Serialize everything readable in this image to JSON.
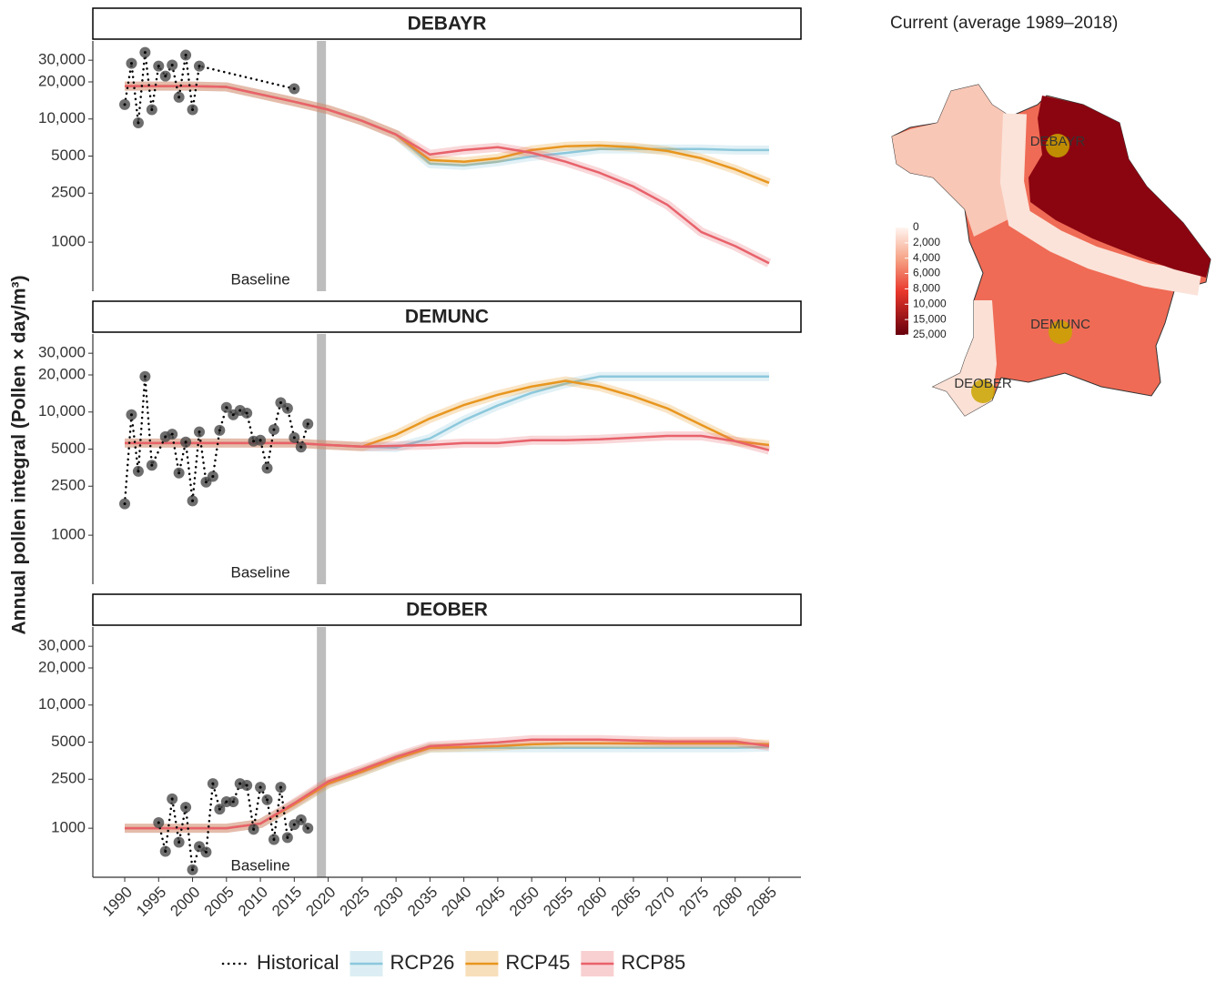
{
  "chart_data": [
    {
      "type": "line",
      "title": "DEBAYR",
      "yscale": "log",
      "xlim": [
        1985.3,
        2089.7
      ],
      "ylim": [
        400,
        43000
      ],
      "yticks": [
        1000,
        2500,
        5000,
        {
          "value": 10000,
          "label": "10,000"
        },
        {
          "value": 20000,
          "label": "20,000"
        },
        {
          "value": 30000,
          "label": "30,000"
        }
      ],
      "annotation": "Baseline",
      "baseline_year": 2019,
      "series": [
        {
          "name": "Historical",
          "color": "#000000",
          "x": [
            1990,
            1991,
            1992,
            1993,
            1994,
            1995,
            1996,
            1997,
            1998,
            1999,
            2000,
            2001,
            2015
          ],
          "values": [
            13100,
            28300,
            9300,
            34700,
            11900,
            26900,
            22300,
            27400,
            15000,
            33000,
            11900,
            26900,
            17600
          ]
        },
        {
          "name": "RCP26",
          "color": "#8cc8dc",
          "x": [
            1990,
            1995,
            2000,
            2005,
            2010,
            2015,
            2020,
            2025,
            2030,
            2035,
            2040,
            2045,
            2050,
            2055,
            2060,
            2065,
            2070,
            2075,
            2080,
            2085
          ],
          "values": [
            18500,
            18500,
            18500,
            18200,
            15850,
            13800,
            11900,
            9660,
            7480,
            4340,
            4200,
            4500,
            4970,
            5300,
            5700,
            5700,
            5700,
            5700,
            5600,
            5600
          ]
        },
        {
          "name": "RCP45",
          "color": "#e8961e",
          "x": [
            1990,
            1995,
            2000,
            2005,
            2010,
            2015,
            2020,
            2025,
            2030,
            2035,
            2040,
            2045,
            2050,
            2055,
            2060,
            2065,
            2070,
            2075,
            2080,
            2085
          ],
          "values": [
            18500,
            18500,
            18500,
            18200,
            15850,
            13800,
            11900,
            9660,
            7480,
            4640,
            4500,
            4800,
            5600,
            6000,
            6100,
            5900,
            5500,
            4800,
            3900,
            3030
          ]
        },
        {
          "name": "RCP85",
          "color": "#e8626b",
          "x": [
            1990,
            1995,
            2000,
            2005,
            2010,
            2015,
            2020,
            2025,
            2030,
            2035,
            2040,
            2045,
            2050,
            2055,
            2060,
            2065,
            2070,
            2075,
            2080,
            2085
          ],
          "values": [
            18500,
            18500,
            18500,
            18200,
            15850,
            13800,
            11900,
            9660,
            7480,
            5150,
            5600,
            5900,
            5320,
            4500,
            3660,
            2830,
            2010,
            1210,
            930,
            675
          ]
        }
      ]
    },
    {
      "type": "line",
      "title": "DEMUNC",
      "yscale": "log",
      "xlim": [
        1985.3,
        2089.7
      ],
      "ylim": [
        400,
        43000
      ],
      "yticks": [
        1000,
        2500,
        5000,
        {
          "value": 10000,
          "label": "10,000"
        },
        {
          "value": 20000,
          "label": "20,000"
        },
        {
          "value": 30000,
          "label": "30,000"
        }
      ],
      "annotation": "Baseline",
      "baseline_year": 2019,
      "series": [
        {
          "name": "Historical",
          "color": "#000000",
          "x": [
            1990,
            1991,
            1992,
            1993,
            1994,
            1996,
            1997,
            1998,
            1999,
            2000,
            2001,
            2002,
            2003,
            2004,
            2005,
            2006,
            2007,
            2008,
            2009,
            2010,
            2011,
            2012,
            2013,
            2014,
            2015,
            2016,
            2017
          ],
          "values": [
            1800,
            9500,
            3300,
            19400,
            3700,
            6300,
            6600,
            3200,
            5700,
            1900,
            6900,
            2700,
            3000,
            7100,
            10900,
            9500,
            10300,
            9800,
            5800,
            5900,
            3500,
            7200,
            11900,
            10700,
            6200,
            5200,
            8000
          ]
        },
        {
          "name": "RCP26",
          "color": "#8cc8dc",
          "x": [
            1990,
            1995,
            2000,
            2005,
            2010,
            2015,
            2020,
            2025,
            2030,
            2035,
            2040,
            2045,
            2050,
            2055,
            2060,
            2065,
            2070,
            2075,
            2080,
            2085
          ],
          "values": [
            5600,
            5600,
            5600,
            5600,
            5600,
            5600,
            5400,
            5240,
            5140,
            6100,
            8560,
            11300,
            14300,
            17000,
            19400,
            19400,
            19400,
            19400,
            19400,
            19400
          ]
        },
        {
          "name": "RCP45",
          "color": "#e8961e",
          "x": [
            1990,
            1995,
            2000,
            2005,
            2010,
            2015,
            2020,
            2025,
            2030,
            2035,
            2040,
            2045,
            2050,
            2055,
            2060,
            2065,
            2070,
            2075,
            2080,
            2085
          ],
          "values": [
            5600,
            5600,
            5600,
            5600,
            5600,
            5600,
            5400,
            5240,
            6530,
            8870,
            11400,
            13800,
            16100,
            17900,
            16100,
            13400,
            10700,
            7870,
            5800,
            5400
          ]
        },
        {
          "name": "RCP85",
          "color": "#e8626b",
          "x": [
            1990,
            1995,
            2000,
            2005,
            2010,
            2015,
            2020,
            2025,
            2030,
            2035,
            2040,
            2045,
            2050,
            2055,
            2060,
            2065,
            2070,
            2075,
            2080,
            2085
          ],
          "values": [
            5600,
            5600,
            5600,
            5600,
            5600,
            5600,
            5400,
            5240,
            5320,
            5400,
            5600,
            5600,
            5900,
            5900,
            6000,
            6200,
            6400,
            6400,
            5800,
            4900
          ]
        }
      ]
    },
    {
      "type": "line",
      "title": "DEOBER",
      "yscale": "log",
      "xlim": [
        1985.3,
        2089.7
      ],
      "ylim": [
        400,
        43000
      ],
      "xticks": [
        1990,
        1995,
        2000,
        2005,
        2010,
        2015,
        2020,
        2025,
        2030,
        2035,
        2040,
        2045,
        2050,
        2055,
        2060,
        2065,
        2070,
        2075,
        2080,
        2085
      ],
      "yticks": [
        1000,
        2500,
        5000,
        {
          "value": 10000,
          "label": "10,000"
        },
        {
          "value": 20000,
          "label": "20,000"
        },
        {
          "value": 30000,
          "label": "30,000"
        }
      ],
      "annotation": "Baseline",
      "baseline_year": 2019,
      "series": [
        {
          "name": "Historical",
          "color": "#000000",
          "x": [
            1995,
            1996,
            1997,
            1998,
            1999,
            2000,
            2001,
            2002,
            2003,
            2004,
            2005,
            2006,
            2007,
            2008,
            2009,
            2010,
            2011,
            2012,
            2013,
            2014,
            2015,
            2016,
            2017
          ],
          "values": [
            1110,
            650,
            1730,
            770,
            1480,
            460,
            710,
            640,
            2300,
            1430,
            1640,
            1640,
            2300,
            2230,
            980,
            2150,
            1700,
            810,
            2150,
            840,
            1070,
            1170,
            1000
          ]
        },
        {
          "name": "RCP26",
          "color": "#8cc8dc",
          "x": [
            1990,
            1995,
            2000,
            2005,
            2010,
            2015,
            2020,
            2025,
            2030,
            2035,
            2040,
            2045,
            2050,
            2055,
            2060,
            2065,
            2070,
            2075,
            2080,
            2085
          ],
          "values": [
            1000,
            1000,
            1000,
            1000,
            1090,
            1560,
            2300,
            2880,
            3660,
            4490,
            4490,
            4500,
            4500,
            4500,
            4500,
            4500,
            4500,
            4500,
            4500,
            4560
          ]
        },
        {
          "name": "RCP45",
          "color": "#e8961e",
          "x": [
            1990,
            1995,
            2000,
            2005,
            2010,
            2015,
            2020,
            2025,
            2030,
            2035,
            2040,
            2045,
            2050,
            2055,
            2060,
            2065,
            2070,
            2075,
            2080,
            2085
          ],
          "values": [
            1000,
            1000,
            1000,
            1000,
            1090,
            1560,
            2300,
            2880,
            3660,
            4490,
            4560,
            4640,
            4800,
            4880,
            4880,
            4880,
            4880,
            4880,
            4880,
            4800
          ]
        },
        {
          "name": "RCP85",
          "color": "#e8626b",
          "x": [
            1990,
            1995,
            2000,
            2005,
            2010,
            2015,
            2020,
            2025,
            2030,
            2035,
            2040,
            2045,
            2050,
            2055,
            2060,
            2065,
            2070,
            2075,
            2080,
            2085
          ],
          "values": [
            1000,
            1000,
            1000,
            1000,
            1090,
            1600,
            2400,
            3000,
            3800,
            4640,
            4800,
            4980,
            5240,
            5240,
            5240,
            5150,
            5070,
            5070,
            5070,
            4640
          ]
        }
      ]
    }
  ],
  "y_label": "Annual pollen integral (Pollen × day/m³)",
  "map": {
    "title": "Current (average 1989–2018)",
    "colorbar_ticks": [
      0,
      {
        "value": 2000,
        "label": "2,000"
      },
      {
        "value": 4000,
        "label": "4,000"
      },
      {
        "value": 6000,
        "label": "6,000"
      },
      {
        "value": 8000,
        "label": "8,000"
      },
      {
        "value": 10000,
        "label": "10,000"
      },
      {
        "value": 15000,
        "label": "15,000"
      },
      {
        "value": 25000,
        "label": "25,000"
      }
    ],
    "stations": [
      "DEBAYR",
      "DEMUNC",
      "DEOBER"
    ]
  }
}
